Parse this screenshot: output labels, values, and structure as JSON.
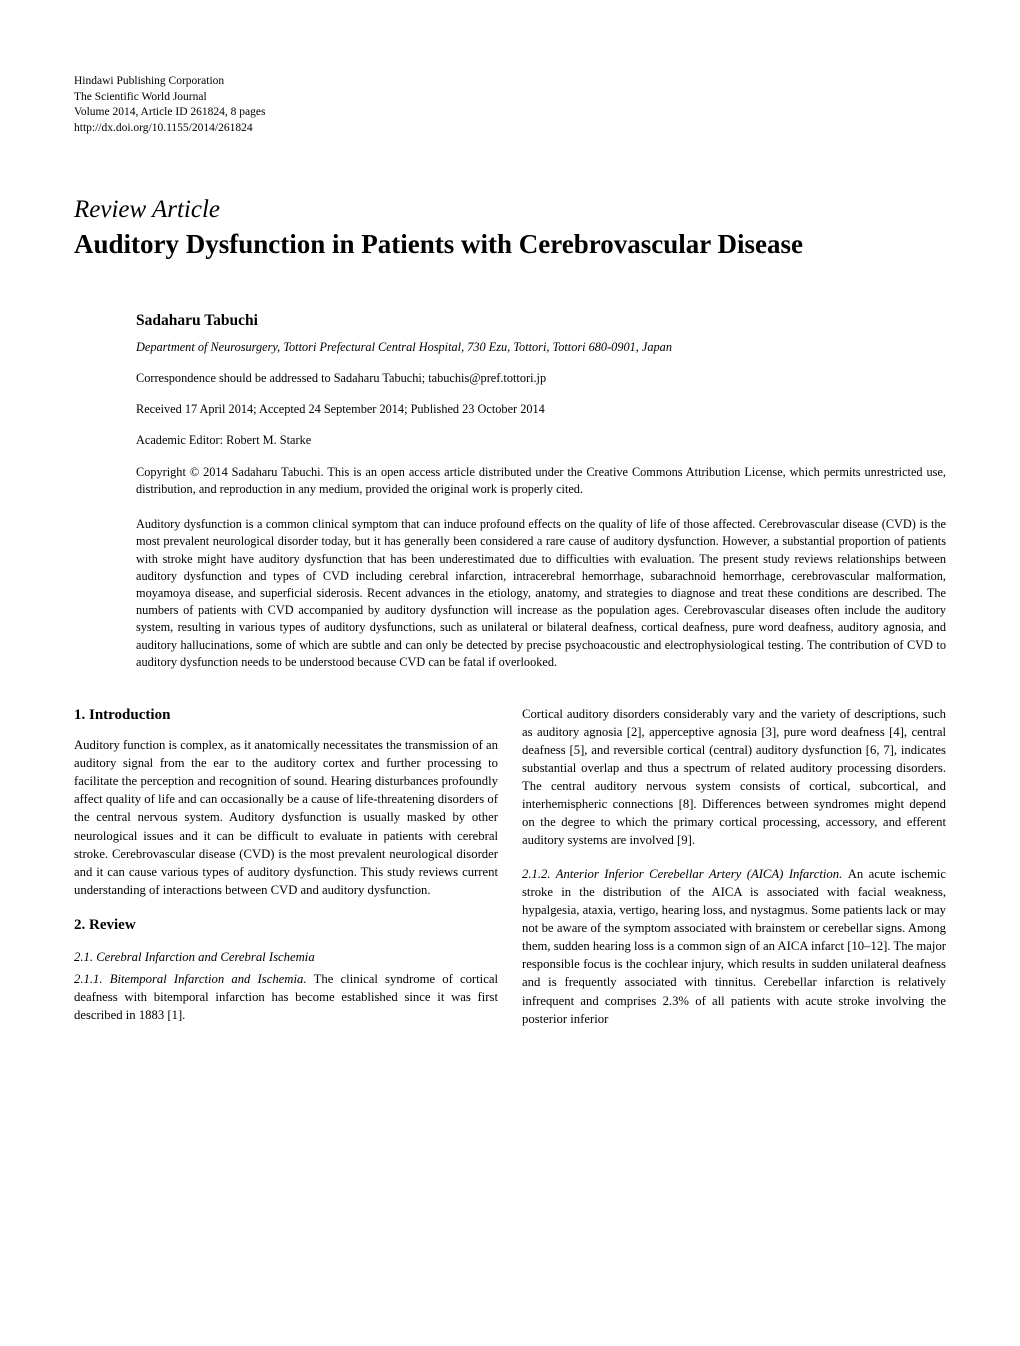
{
  "pubinfo": {
    "line1": "Hindawi Publishing Corporation",
    "line2": "The Scientific World Journal",
    "line3": "Volume 2014, Article ID 261824, 8 pages",
    "line4": "http://dx.doi.org/10.1155/2014/261824"
  },
  "article_type": "Review Article",
  "title": "Auditory Dysfunction in Patients with Cerebrovascular Disease",
  "author": "Sadaharu Tabuchi",
  "affiliation": "Department of Neurosurgery, Tottori Prefectural Central Hospital, 730 Ezu, Tottori, Tottori 680-0901, Japan",
  "correspondence": "Correspondence should be addressed to Sadaharu Tabuchi; tabuchis@pref.tottori.jp",
  "dates": "Received 17 April 2014; Accepted 24 September 2014; Published 23 October 2014",
  "editor": "Academic Editor: Robert M. Starke",
  "copyright": "Copyright © 2014 Sadaharu Tabuchi. This is an open access article distributed under the Creative Commons Attribution License, which permits unrestricted use, distribution, and reproduction in any medium, provided the original work is properly cited.",
  "abstract": "Auditory dysfunction is a common clinical symptom that can induce profound effects on the quality of life of those affected. Cerebrovascular disease (CVD) is the most prevalent neurological disorder today, but it has generally been considered a rare cause of auditory dysfunction. However, a substantial proportion of patients with stroke might have auditory dysfunction that has been underestimated due to difficulties with evaluation. The present study reviews relationships between auditory dysfunction and types of CVD including cerebral infarction, intracerebral hemorrhage, subarachnoid hemorrhage, cerebrovascular malformation, moyamoya disease, and superficial siderosis. Recent advances in the etiology, anatomy, and strategies to diagnose and treat these conditions are described. The numbers of patients with CVD accompanied by auditory dysfunction will increase as the population ages. Cerebrovascular diseases often include the auditory system, resulting in various types of auditory dysfunctions, such as unilateral or bilateral deafness, cortical deafness, pure word deafness, auditory agnosia, and auditory hallucinations, some of which are subtle and can only be detected by precise psychoacoustic and electrophysiological testing. The contribution of CVD to auditory dysfunction needs to be understood because CVD can be fatal if overlooked.",
  "left": {
    "h_intro": "1. Introduction",
    "intro": "Auditory function is complex, as it anatomically necessitates the transmission of an auditory signal from the ear to the auditory cortex and further processing to facilitate the perception and recognition of sound. Hearing disturbances profoundly affect quality of life and can occasionally be a cause of life-threatening disorders of the central nervous system. Auditory dysfunction is usually masked by other neurological issues and it can be difficult to evaluate in patients with cerebral stroke. Cerebrovascular disease (CVD) is the most prevalent neurological disorder and it can cause various types of auditory dysfunction. This study reviews current understanding of interactions between CVD and auditory dysfunction.",
    "h_review": "2. Review",
    "h_21": "2.1. Cerebral Infarction and Cerebral Ischemia",
    "runin_211": "2.1.1. Bitemporal Infarction and Ischemia. ",
    "p_211": "The clinical syndrome of cortical deafness with bitemporal infarction has become established since it was first described in 1883 [1]."
  },
  "right": {
    "p_top": "Cortical auditory disorders considerably vary and the variety of descriptions, such as auditory agnosia [2], apperceptive agnosia [3], pure word deafness [4], central deafness [5], and reversible cortical (central) auditory dysfunction [6, 7], indicates substantial overlap and thus a spectrum of related auditory processing disorders. The central auditory nervous system consists of cortical, subcortical, and interhemispheric connections [8]. Differences between syndromes might depend on the degree to which the primary cortical processing, accessory, and efferent auditory systems are involved [9].",
    "runin_212": "2.1.2. Anterior Inferior Cerebellar Artery (AICA) Infarction. ",
    "p_212": "An acute ischemic stroke in the distribution of the AICA is associated with facial weakness, hypalgesia, ataxia, vertigo, hearing loss, and nystagmus. Some patients lack or may not be aware of the symptom associated with brainstem or cerebellar signs. Among them, sudden hearing loss is a common sign of an AICA infarct [10–12]. The major responsible focus is the cochlear injury, which results in sudden unilateral deafness and is frequently associated with tinnitus. Cerebellar infarction is relatively infrequent and comprises 2.3% of all patients with acute stroke involving the posterior inferior"
  }
}
